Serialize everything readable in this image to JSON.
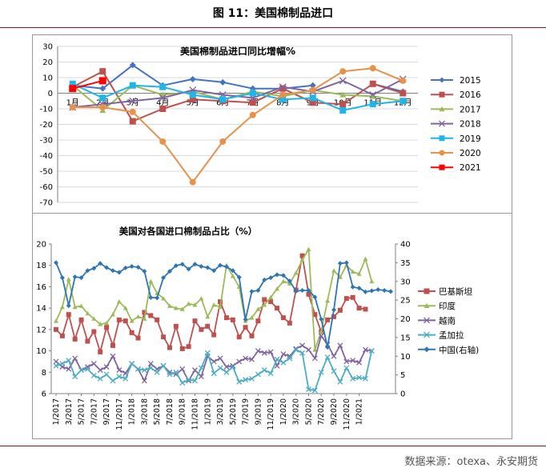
{
  "figure": {
    "title": "图 11：美国棉制品进口",
    "source": "数据来源：otexa、永安期货"
  },
  "colors": {
    "rule": "#8b1a1a",
    "frame": "#9a9a9a"
  },
  "chart_data": [
    {
      "type": "line",
      "title": "美国棉制品进口同比增幅%",
      "categories": [
        "1月",
        "2月",
        "3月",
        "4月",
        "5月",
        "6月",
        "7月",
        "8月",
        "9月",
        "10月",
        "11月",
        "12月"
      ],
      "ylim": [
        -70,
        30
      ],
      "yticks": [
        30,
        20,
        10,
        0,
        -10,
        -20,
        -30,
        -40,
        -50,
        -60,
        -70
      ],
      "grid": true,
      "legend": "right",
      "series": [
        {
          "name": "2015",
          "color": "#4472c4",
          "marker": "diamond",
          "values": [
            5,
            3,
            18,
            5,
            9,
            7,
            3,
            3,
            5,
            null,
            6,
            1
          ]
        },
        {
          "name": "2016",
          "color": "#c0504d",
          "marker": "square",
          "values": [
            4,
            14,
            -18,
            -10,
            -4,
            -5,
            -6,
            3,
            -6,
            -7,
            6,
            0
          ]
        },
        {
          "name": "2017",
          "color": "#9bbb59",
          "marker": "triangle",
          "values": [
            5,
            -11,
            5,
            -1,
            1,
            -4,
            1,
            -2,
            2,
            -1,
            -2,
            -5
          ]
        },
        {
          "name": "2018",
          "color": "#8064a2",
          "marker": "x",
          "values": [
            -9,
            -7,
            -5,
            -3,
            2,
            -1,
            -3,
            4,
            1,
            8,
            -1,
            9
          ]
        },
        {
          "name": "2019",
          "color": "#1fb5e8",
          "marker": "square",
          "values": [
            6,
            -3,
            5,
            4,
            -1,
            -4,
            0,
            -4,
            -3,
            -11,
            -7,
            -5
          ]
        },
        {
          "name": "2020",
          "color": "#e8914b",
          "marker": "circle",
          "values": [
            -9,
            -9,
            -12,
            -31,
            -57,
            -31,
            -14,
            -1,
            2,
            14,
            16,
            8
          ]
        },
        {
          "name": "2021",
          "color": "#ff0000",
          "marker": "square",
          "values": [
            3,
            8,
            null,
            null,
            null,
            null,
            null,
            null,
            null,
            null,
            null,
            null
          ]
        }
      ]
    },
    {
      "type": "line",
      "title": "美国对各国进口棉制品占比（%）",
      "x_labels": [
        "1/2017",
        "3/2017",
        "5/2017",
        "7/2017",
        "9/2017",
        "11/2017",
        "1/2018",
        "3/2018",
        "5/2018",
        "7/2018",
        "9/2018",
        "11/2018",
        "1/2019",
        "3/2019",
        "5/2019",
        "7/2019",
        "9/2019",
        "11/2019",
        "1/2020",
        "3/2020",
        "5/2020",
        "7/2020",
        "9/2020",
        "11/2020",
        "1/2021"
      ],
      "ylim_left": [
        6,
        20
      ],
      "yticks_left": [
        20,
        18,
        16,
        14,
        12,
        10,
        8,
        6
      ],
      "ylim_right": [
        0,
        40
      ],
      "yticks_right": [
        40,
        35,
        30,
        25,
        20,
        15,
        10,
        5,
        0
      ],
      "grid": false,
      "legend": "right",
      "series": [
        {
          "name": "巴基斯坦",
          "axis": "left",
          "color": "#c0504d",
          "marker": "square",
          "values": [
            12,
            11.4,
            13.4,
            11.1,
            12.9,
            10.9,
            11.8,
            9.9,
            12.2,
            10.5,
            12.9,
            12.8,
            11.7,
            11.2,
            13.6,
            13.3,
            12.9,
            11.3,
            10.3,
            12.3,
            10.2,
            10.4,
            12.8,
            12,
            12.3,
            11.5,
            14.6,
            13.1,
            12.9,
            11.3,
            12.2,
            11.4,
            12.8,
            14.8,
            14.6,
            14,
            13.1,
            12.6,
            15.7,
            18.9,
            15.3,
            13.4,
            11.8,
            12.9,
            13.2,
            13.8,
            14.9,
            15,
            14,
            13.9
          ]
        },
        {
          "name": "印度",
          "axis": "left",
          "color": "#9bbb59",
          "marker": "triangle",
          "values": [
            12.8,
            14.1,
            16.7,
            14.1,
            14.2,
            13.5,
            13,
            12.5,
            12.6,
            13.4,
            14.6,
            14,
            12.8,
            13.2,
            13,
            16.5,
            15.4,
            14.9,
            14.2,
            14,
            13.9,
            14.4,
            14.3,
            14.9,
            13.2,
            14.3,
            14.1,
            18,
            17,
            16,
            12.8,
            13.1,
            13.9,
            14.3,
            15,
            15.8,
            16.5,
            16.3,
            17.3,
            18.5,
            19.5,
            10.1,
            11.8,
            14.7,
            17.5,
            16.9,
            18,
            17.4,
            17.2,
            18.6,
            16.5
          ]
        },
        {
          "name": "越南",
          "axis": "left",
          "color": "#8064a2",
          "marker": "x",
          "values": [
            9,
            8.5,
            8.3,
            9.3,
            8.2,
            8.5,
            8.8,
            8.2,
            8.5,
            9.5,
            8.2,
            7.9,
            8.8,
            8.3,
            7.2,
            8.8,
            8.3,
            8.6,
            8,
            7.8,
            8.3,
            7.2,
            8.2,
            7.6,
            9.5,
            9,
            9.3,
            8.5,
            8.6,
            9,
            9.3,
            9.2,
            10,
            9.8,
            9.9,
            8.6,
            9.7,
            9.5,
            10.2,
            10.5,
            10.1,
            9.3,
            11.4,
            10.6,
            9.5,
            10.5,
            9,
            9.1,
            8.9,
            10.1,
            10
          ]
        },
        {
          "name": "孟加拉",
          "axis": "left",
          "color": "#4bacc6",
          "marker": "x",
          "values": [
            8.6,
            8.8,
            9.1,
            7.6,
            8.2,
            8.3,
            7.7,
            7.4,
            7.8,
            7.2,
            7.6,
            7.4,
            8.8,
            8.3,
            8.2,
            8.4,
            8,
            8.6,
            7.8,
            8,
            7,
            7.3,
            7.2,
            8.4,
            9.8,
            7.9,
            8.4,
            8,
            8.5,
            7.1,
            7.3,
            7.4,
            7.8,
            8.2,
            7.9,
            9.2,
            8.9,
            9.3,
            10.1,
            9.8,
            6.4,
            6.3,
            8,
            9.4,
            8.1,
            7.1,
            8.4,
            7.4,
            7.5,
            7.4,
            10
          ]
        },
        {
          "name": "中国(右轴)",
          "axis": "right",
          "color": "#2e75b6",
          "marker": "diamond",
          "values": [
            35,
            31,
            23.5,
            31.2,
            31,
            32.9,
            33.5,
            34.8,
            33.7,
            32.9,
            32.4,
            33.6,
            34,
            33.8,
            32.7,
            25.7,
            25.6,
            31,
            32.7,
            34.2,
            34.6,
            33.3,
            34.6,
            34,
            33.7,
            32.9,
            34.3,
            33.9,
            32.9,
            31.1,
            19.8,
            27.3,
            27.6,
            30.4,
            31,
            31.8,
            31.6,
            30.1,
            27.4,
            27.6,
            27.6,
            25.8,
            19.9,
            12.4,
            22.4,
            34.8,
            35,
            28.5,
            28.2,
            27.2,
            27.5,
            27.8,
            27.6,
            27.3
          ]
        }
      ]
    }
  ]
}
